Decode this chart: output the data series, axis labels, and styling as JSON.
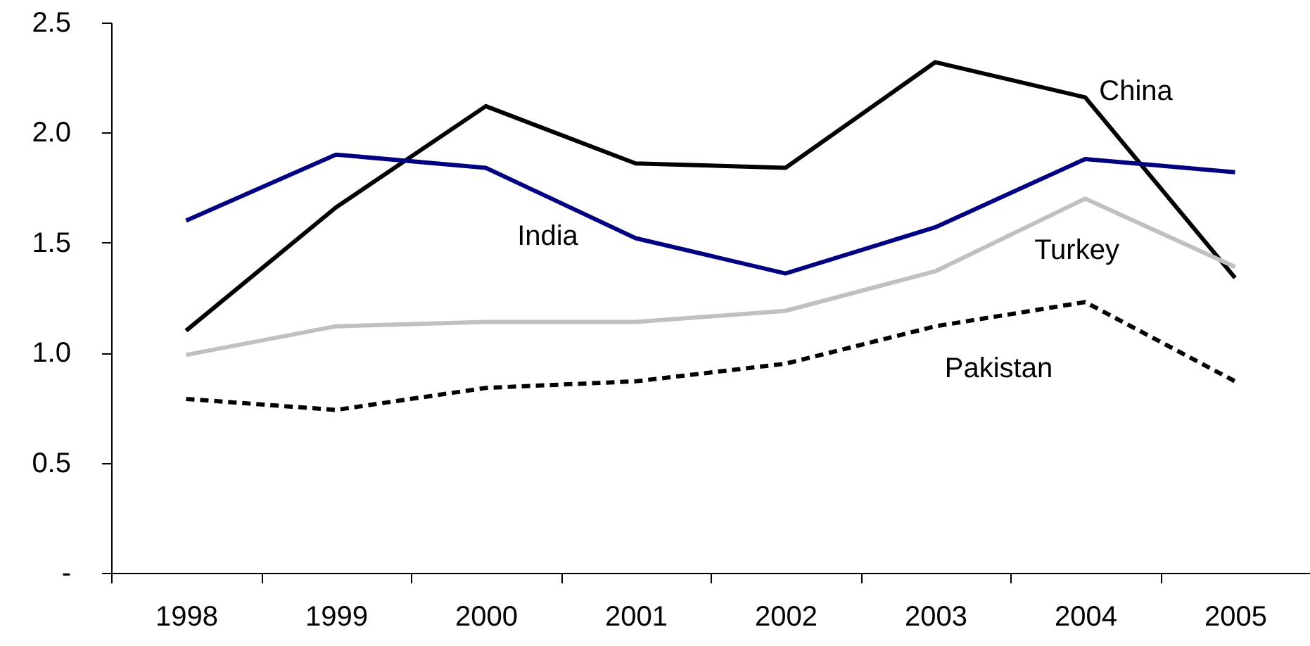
{
  "chart_data": {
    "type": "line",
    "categories": [
      "1998",
      "1999",
      "2000",
      "2001",
      "2002",
      "2003",
      "2004",
      "2005"
    ],
    "series": [
      {
        "name": "China",
        "color": "#000000",
        "values": [
          1.1,
          1.66,
          2.12,
          1.86,
          1.84,
          2.32,
          2.16,
          1.34
        ]
      },
      {
        "name": "India",
        "color": "#000080",
        "values": [
          1.6,
          1.9,
          1.84,
          1.52,
          1.36,
          1.57,
          1.88,
          1.82
        ]
      },
      {
        "name": "Turkey",
        "color": "#c0c0c0",
        "values": [
          0.99,
          1.12,
          1.14,
          1.14,
          1.19,
          1.37,
          1.7,
          1.39
        ]
      },
      {
        "name": "Pakistan",
        "color": "#000000",
        "line_style": "dashed",
        "values": [
          0.79,
          0.74,
          0.84,
          0.87,
          0.95,
          1.12,
          1.23,
          0.87
        ]
      }
    ],
    "ylim": [
      0,
      2.5
    ],
    "yticks": [
      {
        "value": 0,
        "label": "-"
      },
      0.5,
      {
        "value": 1,
        "label": "1.0"
      },
      1.5,
      {
        "value": 2,
        "label": "2.0"
      },
      2.5
    ],
    "grid": false,
    "legend": false,
    "marker": "none"
  }
}
